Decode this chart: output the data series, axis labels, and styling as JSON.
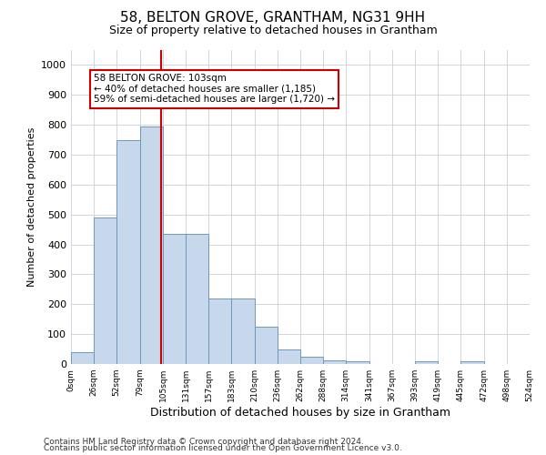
{
  "title": "58, BELTON GROVE, GRANTHAM, NG31 9HH",
  "subtitle": "Size of property relative to detached houses in Grantham",
  "xlabel": "Distribution of detached houses by size in Grantham",
  "ylabel": "Number of detached properties",
  "bar_color": "#c8d8ec",
  "bar_edge_color": "#7098b8",
  "background_color": "#ffffff",
  "grid_color": "#c8d0dc",
  "annotation_box_color": "#cc0000",
  "property_line_color": "#cc0000",
  "property_value": 103,
  "annotation_text_line1": "58 BELTON GROVE: 103sqm",
  "annotation_text_line2": "← 40% of detached houses are smaller (1,185)",
  "annotation_text_line3": "59% of semi-detached houses are larger (1,720) →",
  "footnote1": "Contains HM Land Registry data © Crown copyright and database right 2024.",
  "footnote2": "Contains public sector information licensed under the Open Government Licence v3.0.",
  "bin_edges": [
    0,
    26,
    52,
    79,
    105,
    131,
    157,
    183,
    210,
    236,
    262,
    288,
    314,
    341,
    367,
    393,
    419,
    445,
    472,
    498,
    524
  ],
  "bar_heights": [
    40,
    490,
    750,
    795,
    435,
    435,
    220,
    220,
    125,
    50,
    25,
    12,
    10,
    0,
    0,
    10,
    0,
    10,
    0,
    0
  ],
  "ylim": [
    0,
    1050
  ],
  "yticks": [
    0,
    100,
    200,
    300,
    400,
    500,
    600,
    700,
    800,
    900,
    1000
  ]
}
